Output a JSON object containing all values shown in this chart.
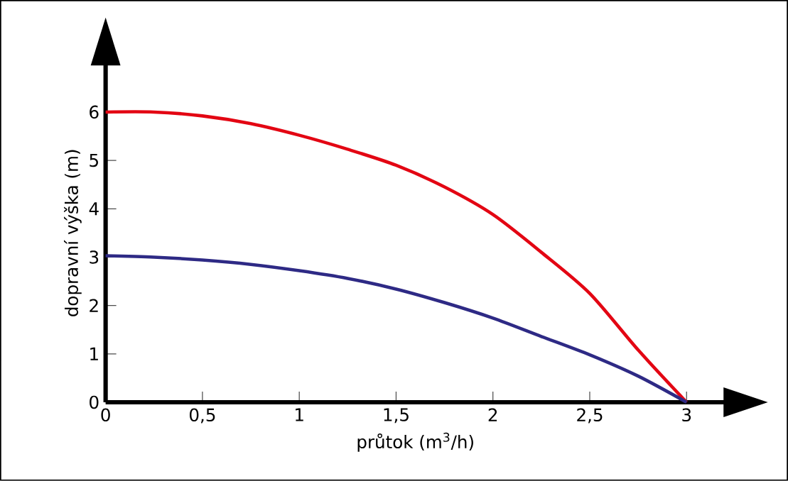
{
  "chart_data": {
    "type": "line",
    "xlabel": "průtok (m$^{3}$/h)",
    "ylabel": "dopravní výška (m)",
    "x": [
      0,
      0.25,
      0.5,
      0.75,
      1,
      1.25,
      1.5,
      1.75,
      2,
      2.25,
      2.5,
      2.75,
      3
    ],
    "series": [
      {
        "color": "#e30613",
        "values": [
          6.0,
          6.0,
          5.92,
          5.76,
          5.52,
          5.23,
          4.9,
          4.45,
          3.88,
          3.1,
          2.25,
          1.08,
          0
        ]
      },
      {
        "color": "#2e2a85",
        "values": [
          3.03,
          3.0,
          2.94,
          2.85,
          2.72,
          2.56,
          2.34,
          2.06,
          1.74,
          1.36,
          0.98,
          0.54,
          0
        ]
      }
    ],
    "xlim": [
      0,
      3.2
    ],
    "ylim": [
      0,
      7.0
    ],
    "xticks": [
      0,
      {
        "value": 0.5,
        "label": "0,5"
      },
      1,
      {
        "value": 1.5,
        "label": "1,5"
      },
      2,
      {
        "value": 2.5,
        "label": "2,5"
      },
      3
    ],
    "yticks": [
      0,
      1,
      2,
      3,
      4,
      5,
      6
    ]
  }
}
